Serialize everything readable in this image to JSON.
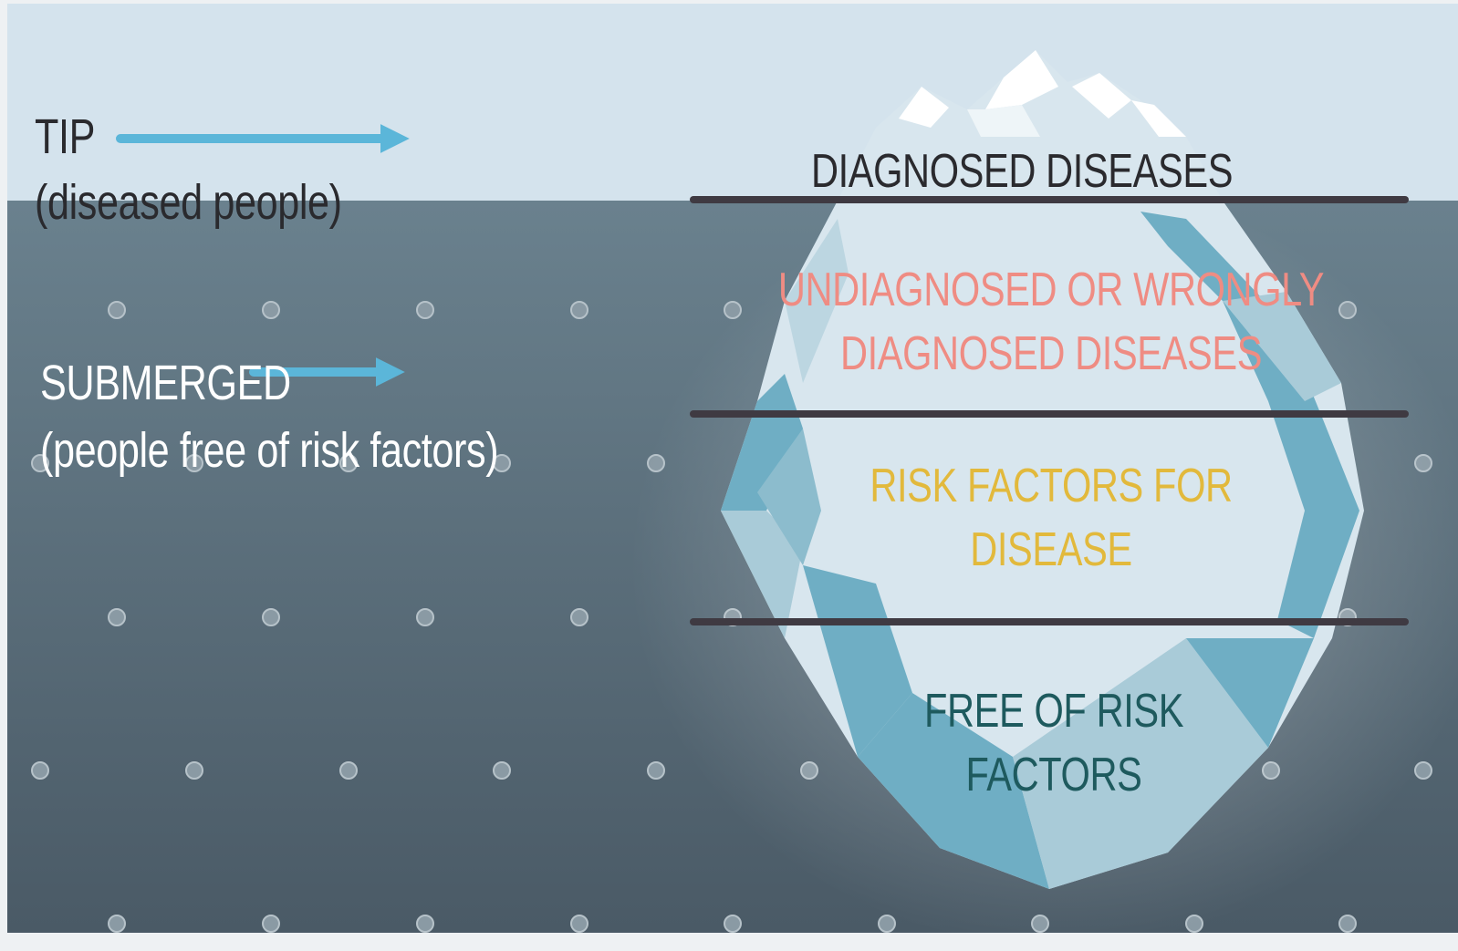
{
  "colors": {
    "sky": "#d4e3ed",
    "water_top": "#6a818e",
    "water_bottom": "#4a5a66",
    "ice_light": "#d8e6ee",
    "ice_mid": "#a9cbd8",
    "ice_dark": "#6faec4",
    "snow": "#ffffff",
    "divider": "#3f3a42",
    "arrow": "#5bb6d9",
    "dark_text": "#2a2a2e",
    "white_text": "#ffffff",
    "pink_text": "#ef8c83",
    "yellow_text": "#e2b93c",
    "teal_text": "#1e5a5e"
  },
  "left": {
    "tip": {
      "title": "TIP",
      "subtitle": "(diseased people)"
    },
    "submerged": {
      "title": "SUBMERGED",
      "subtitle": "(people free of risk factors)"
    }
  },
  "layers": [
    {
      "lines": [
        "DIAGNOSED DISEASES"
      ]
    },
    {
      "lines": [
        "UNDIAGNOSED OR WRONGLY",
        "DIAGNOSED DISEASES"
      ]
    },
    {
      "lines": [
        "RISK FACTORS FOR",
        "DISEASE"
      ]
    },
    {
      "lines": [
        "FREE OF RISK",
        "FACTORS"
      ]
    }
  ]
}
